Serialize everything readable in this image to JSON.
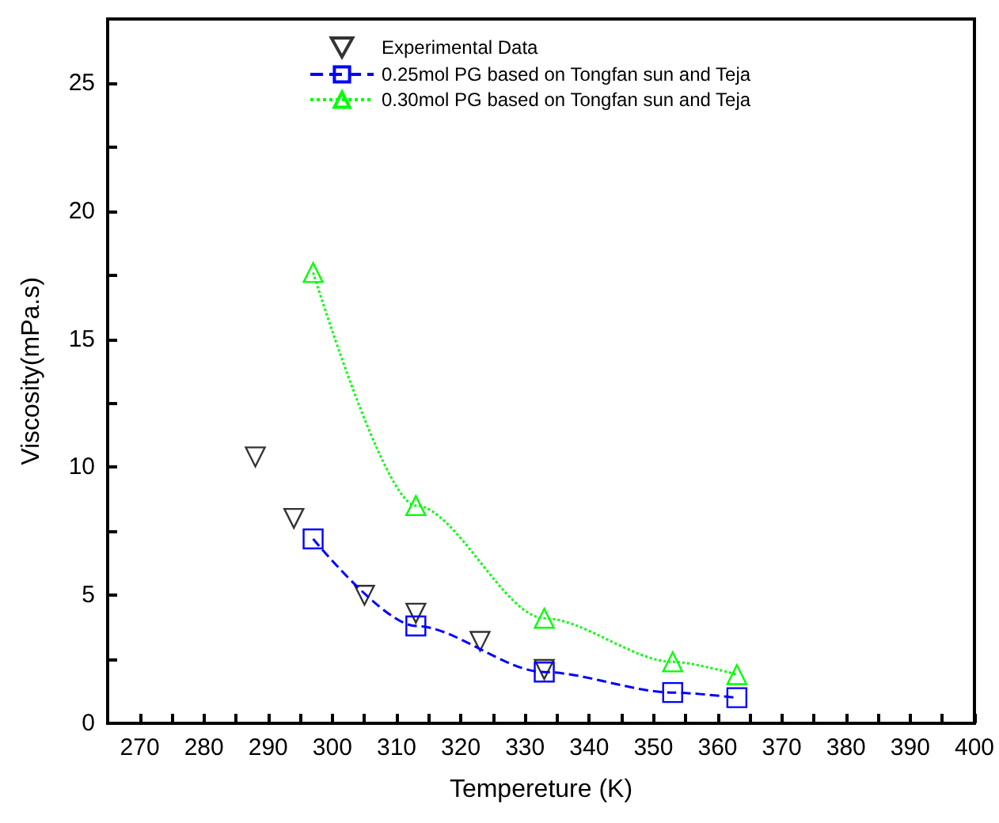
{
  "chart_data": {
    "type": "scatter",
    "xlabel": "Tempereture (K)",
    "ylabel": "Viscosity(mPa.s)",
    "xlim": [
      265,
      400
    ],
    "ylim": [
      0,
      27.5
    ],
    "xticks": [
      270,
      {
        "value": 275,
        "label": null
      },
      280,
      {
        "value": 285,
        "label": null
      },
      290,
      {
        "value": 295,
        "label": null
      },
      300,
      {
        "value": 305,
        "label": null
      },
      310,
      {
        "value": 315,
        "label": null
      },
      320,
      {
        "value": 325,
        "label": null
      },
      330,
      {
        "value": 335,
        "label": null
      },
      340,
      {
        "value": 345,
        "label": null
      },
      350,
      {
        "value": 355,
        "label": null
      },
      360,
      {
        "value": 365,
        "label": null
      },
      370,
      {
        "value": 375,
        "label": null
      },
      380,
      {
        "value": 385,
        "label": null
      },
      390,
      {
        "value": 395,
        "label": null
      },
      400
    ],
    "yticks": [
      0,
      {
        "value": 2.5,
        "label": null
      },
      5,
      {
        "value": 7.5,
        "label": null
      },
      10,
      {
        "value": 12.5,
        "label": null
      },
      15,
      {
        "value": 17.5,
        "label": null
      },
      20,
      {
        "value": 22.5,
        "label": null
      },
      25
    ],
    "grid": false,
    "legend": "top",
    "series": [
      {
        "name": "Experimental Data",
        "marker": "triangle-down",
        "color": "#000000",
        "x": [
          288,
          294,
          305,
          313,
          323,
          333
        ],
        "values": [
          10.4,
          8.0,
          5.0,
          4.3,
          3.2,
          2.1
        ]
      },
      {
        "name": "0.25mol PG based on Tongfan sun and Teja",
        "type": "line",
        "marker": "square",
        "line_style": "dashed",
        "color": "#0000ff",
        "x": [
          297,
          313,
          333,
          353,
          363
        ],
        "values": [
          7.2,
          3.8,
          2.0,
          1.2,
          1.0
        ]
      },
      {
        "name": "0.30mol PG based on Tongfan sun and Teja",
        "type": "line",
        "marker": "triangle",
        "line_style": "dotted",
        "color": "#00ff00",
        "x": [
          297,
          313,
          333,
          353,
          363
        ],
        "values": [
          17.6,
          8.5,
          4.1,
          2.4,
          1.9
        ]
      }
    ]
  }
}
